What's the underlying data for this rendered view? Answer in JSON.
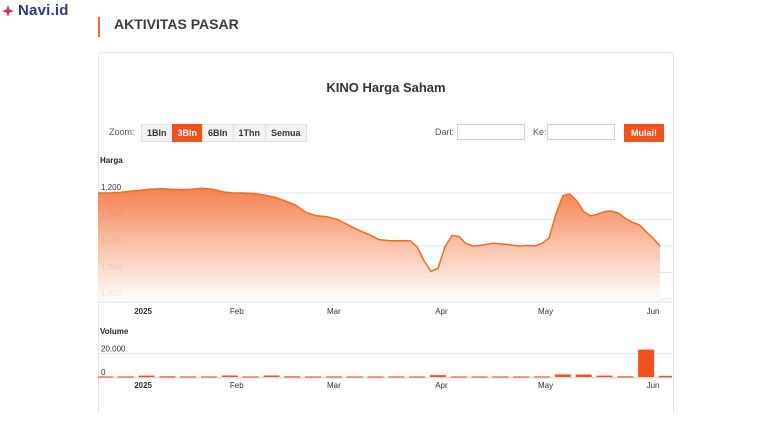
{
  "brand": {
    "name": "Navi.id",
    "color": "#e91e63"
  },
  "section": {
    "title": "AKTIVITAS PASAR"
  },
  "chart": {
    "title": "KINO Harga Saham",
    "zoom_label": "Zoom:",
    "zoom_options": [
      "1Bln",
      "3Bln",
      "6Bln",
      "1Thn",
      "Semua"
    ],
    "zoom_active": "3Bln",
    "from_label": "Dari:",
    "to_label": "Ke:",
    "from_value": "",
    "to_value": "",
    "start_button": "Mulai!",
    "accent": "#f2511d"
  },
  "chart_data": [
    {
      "type": "area",
      "ylabel": "Harga",
      "ylim": [
        1000,
        1200
      ],
      "yticks": [
        "1.200",
        "1.150",
        "1.100",
        "1.050",
        "1.000"
      ],
      "x_ticks": [
        "2025",
        "Feb",
        "Mar",
        "Apr",
        "May",
        "Jun"
      ],
      "x_tick_days": [
        13,
        40,
        68,
        99,
        129,
        160
      ],
      "grid": true,
      "series": [
        {
          "x": [
            0,
            3,
            6,
            9,
            12,
            15,
            18,
            21,
            24,
            27,
            30,
            33,
            36,
            39,
            42,
            45,
            48,
            51,
            54,
            57,
            60,
            63,
            66,
            69,
            72,
            75,
            78,
            81,
            84,
            87,
            90,
            92,
            94,
            96,
            98,
            100,
            102,
            104,
            106,
            108,
            110,
            112,
            114,
            116,
            118,
            120,
            122,
            124,
            126,
            128,
            130,
            132,
            134,
            136,
            138,
            140,
            142,
            144,
            146,
            148,
            150,
            152,
            154,
            156,
            158,
            160,
            162
          ],
          "values": [
            1200,
            1200,
            1201,
            1203,
            1205,
            1207,
            1208,
            1207,
            1206,
            1207,
            1209,
            1207,
            1202,
            1200,
            1200,
            1199,
            1196,
            1192,
            1185,
            1177,
            1163,
            1157,
            1155,
            1150,
            1140,
            1130,
            1122,
            1112,
            1110,
            1110,
            1110,
            1098,
            1072,
            1052,
            1058,
            1098,
            1120,
            1118,
            1105,
            1100,
            1101,
            1103,
            1105,
            1104,
            1103,
            1101,
            1100,
            1101,
            1100,
            1105,
            1115,
            1160,
            1195,
            1198,
            1185,
            1165,
            1157,
            1160,
            1165,
            1166,
            1162,
            1152,
            1145,
            1140,
            1127,
            1115,
            1100
          ]
        }
      ]
    },
    {
      "type": "bar",
      "ylabel": "Volume",
      "ylim": [
        0,
        30000
      ],
      "yticks": [
        "20.000",
        "0"
      ],
      "x_ticks": [
        "2025",
        "Feb",
        "Mar",
        "Apr",
        "May",
        "Jun"
      ],
      "x_tick_days": [
        13,
        40,
        68,
        99,
        129,
        160
      ],
      "series": [
        {
          "x": [
            2,
            8,
            14,
            20,
            26,
            32,
            38,
            44,
            50,
            56,
            62,
            68,
            74,
            80,
            86,
            92,
            98,
            104,
            110,
            116,
            122,
            128,
            134,
            140,
            146,
            152,
            158,
            164
          ],
          "values": [
            500,
            500,
            1200,
            600,
            500,
            500,
            1300,
            500,
            1300,
            600,
            500,
            500,
            500,
            500,
            500,
            500,
            1600,
            500,
            500,
            500,
            500,
            500,
            2200,
            2100,
            1200,
            600,
            23500,
            1000
          ]
        }
      ]
    }
  ]
}
